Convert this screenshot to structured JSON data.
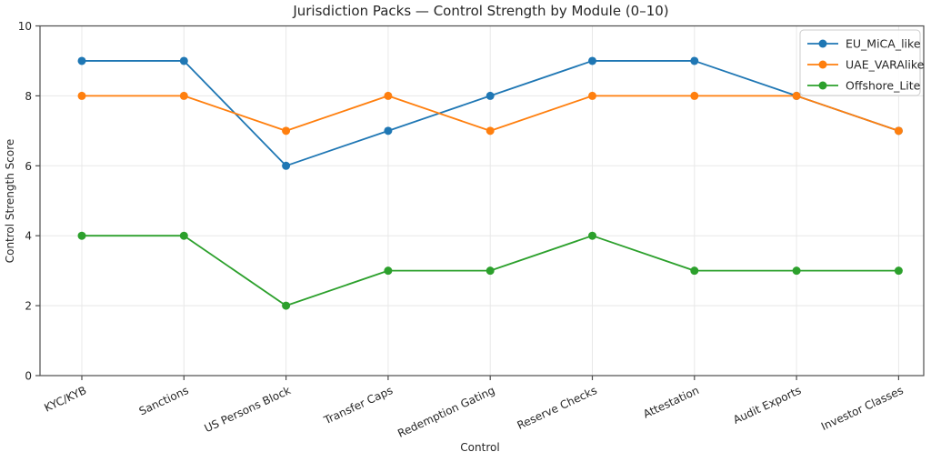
{
  "chart_data": {
    "type": "line",
    "title": "Jurisdiction Packs — Control Strength by Module (0–10)",
    "xlabel": "Control",
    "ylabel": "Control Strength Score",
    "ylim": [
      0,
      10
    ],
    "yticks": [
      0,
      2,
      4,
      6,
      8,
      10
    ],
    "categories": [
      "KYC/KYB",
      "Sanctions",
      "US Persons Block",
      "Transfer Caps",
      "Redemption Gating",
      "Reserve Checks",
      "Attestation",
      "Audit Exports",
      "Investor Classes"
    ],
    "series": [
      {
        "name": "EU_MiCA_like",
        "color": "#1f77b4",
        "values": [
          9,
          9,
          6,
          7,
          8,
          9,
          9,
          8,
          7
        ]
      },
      {
        "name": "UAE_VARAlike",
        "color": "#ff7f0e",
        "values": [
          8,
          8,
          7,
          8,
          7,
          8,
          8,
          8,
          7
        ]
      },
      {
        "name": "Offshore_Lite",
        "color": "#2ca02c",
        "values": [
          4,
          4,
          2,
          3,
          3,
          4,
          3,
          3,
          3
        ]
      }
    ],
    "legend": {
      "position": "top-right"
    },
    "grid": true,
    "x_tick_rotation_deg": 25,
    "colors": {
      "grid": "#e8e8e8",
      "spine": "#4d4d4d",
      "text": "#262626",
      "legend_border": "#cccccc",
      "legend_background": "#ffffff"
    }
  }
}
